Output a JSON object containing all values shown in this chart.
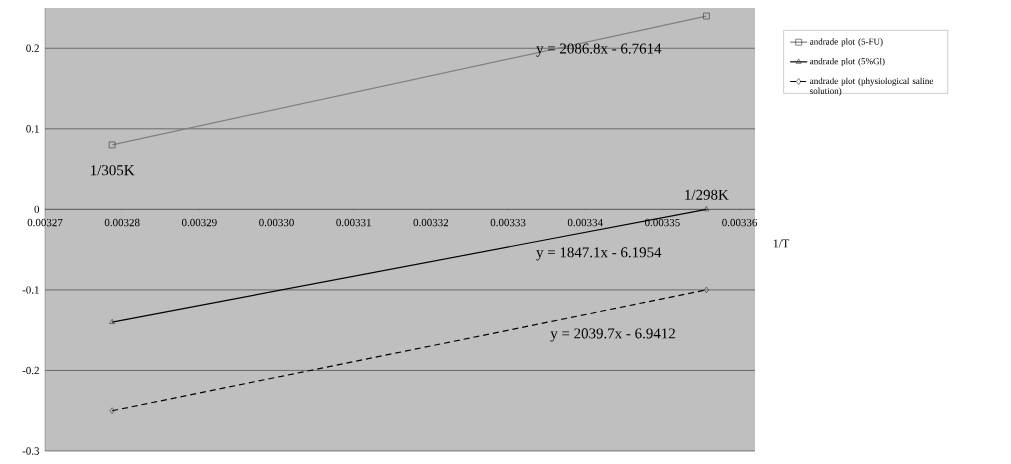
{
  "chart_data": {
    "type": "line",
    "xlabel": "1/T",
    "x": [
      0.0032787,
      0.0033557
    ],
    "series": [
      {
        "name": "andrade plot  (5-FU)",
        "color": "#808080",
        "values": [
          0.08,
          0.24
        ],
        "marker": "square",
        "line_style": "solid"
      },
      {
        "name": "andrade plot  (5%Gl)",
        "color": "#000000",
        "values": [
          -0.14,
          0.0
        ],
        "marker": "triangle",
        "line_style": "solid"
      },
      {
        "name": "andrade plot  (physiological saline solution)",
        "color": "#000000",
        "values": [
          -0.25,
          -0.1
        ],
        "marker": "diamond",
        "line_style": "dashed"
      }
    ],
    "xlim": [
      0.00327,
      0.003362
    ],
    "ylim": [
      -0.3,
      0.25
    ],
    "xticks": [
      0.00327,
      0.00328,
      0.00329,
      {
        "value": 0.0033,
        "label": "0.00330"
      },
      0.00331,
      0.00332,
      0.00333,
      0.00334,
      0.00335,
      0.00336
    ],
    "yticks": [
      -0.3,
      -0.2,
      -0.1,
      0,
      0.1,
      0.2
    ],
    "grid": "y",
    "legend": "right",
    "annotations": [
      "y = 2086.8x - 6.7614",
      "y = 1847.1x - 6.1954",
      "y = 2039.7x - 6.9412",
      {
        "text": "1/305K",
        "x": 0.0032787,
        "y": 0.08
      },
      {
        "text": "1/298K",
        "x": 0.0033557,
        "y": 0.0
      }
    ]
  }
}
